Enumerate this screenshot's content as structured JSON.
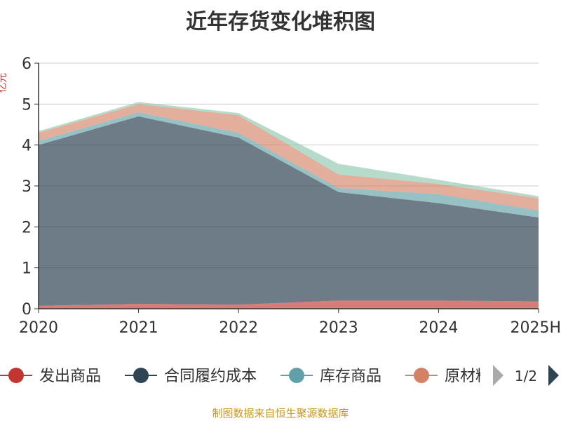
{
  "title": "近年存货变化堆积图",
  "ylabel": "亿元",
  "source": "制图数据来自恒生聚源数据库",
  "legend_page": "1/2",
  "chart_data": {
    "type": "area",
    "stacked": true,
    "title": "近年存货变化堆积图",
    "ylabel": "亿元",
    "x": [
      "2020",
      "2021",
      "2022",
      "2023",
      "2024",
      "2025H"
    ],
    "ylim": [
      0,
      6
    ],
    "yticks": [
      "0",
      "1",
      "2",
      "3",
      "4",
      "5",
      "6"
    ],
    "grid": true,
    "legend_position": "bottom",
    "series": [
      {
        "name": "发出商品",
        "color": "#c23531",
        "values": [
          0.07,
          0.12,
          0.1,
          0.2,
          0.2,
          0.18
        ]
      },
      {
        "name": "合同履约成本",
        "color": "#2f4554",
        "values": [
          3.93,
          4.58,
          4.08,
          2.65,
          2.38,
          2.05
        ]
      },
      {
        "name": "库存商品",
        "color": "#61a0a8",
        "values": [
          0.1,
          0.1,
          0.12,
          0.1,
          0.22,
          0.17
        ]
      },
      {
        "name": "原材料",
        "color": "#d48265",
        "values": [
          0.2,
          0.2,
          0.43,
          0.33,
          0.25,
          0.3
        ]
      },
      {
        "name": "",
        "color": "#91c7ae",
        "values": [
          0.04,
          0.05,
          0.05,
          0.26,
          0.1,
          0.05
        ]
      }
    ]
  }
}
